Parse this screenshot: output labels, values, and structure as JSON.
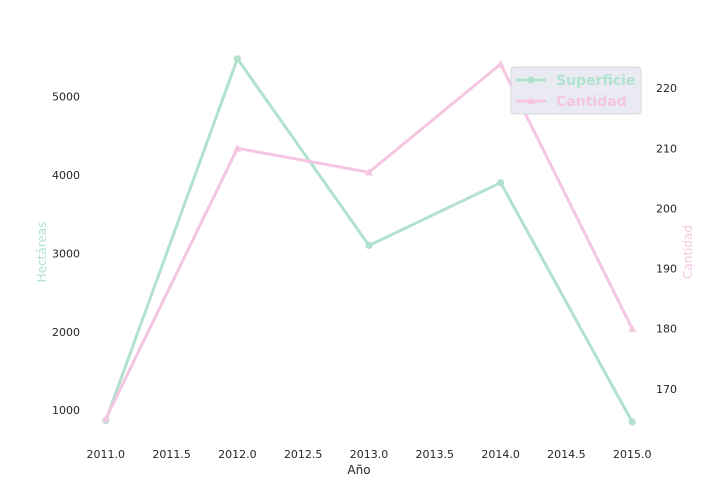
{
  "chart_data": {
    "type": "line",
    "title": "",
    "xlabel": "Año",
    "x": [
      2011,
      2012,
      2013,
      2014,
      2015
    ],
    "xlim": [
      2010.88,
      2015.12
    ],
    "x_ticks": [
      "2011.0",
      "2011.5",
      "2012.0",
      "2012.5",
      "2013.0",
      "2013.5",
      "2014.0",
      "2014.5",
      "2015.0"
    ],
    "y_left": {
      "label": "Hectáreas",
      "lim": [
        620,
        5720
      ],
      "ticks": [
        1000,
        2000,
        3000,
        4000,
        5000
      ]
    },
    "y_right": {
      "label": "Cantidad",
      "lim": [
        161.5,
        228.0
      ],
      "ticks": [
        170,
        180,
        190,
        200,
        210,
        220
      ]
    },
    "series": [
      {
        "name": "Superficie",
        "axis": "left",
        "marker": "circle",
        "color": "#b1e2ce",
        "values": [
          870,
          5480,
          3100,
          3900,
          850
        ]
      },
      {
        "name": "Cantidad",
        "axis": "right",
        "marker": "triangle",
        "color": "#f5c6e2",
        "values": [
          165,
          210,
          206,
          224,
          180
        ]
      }
    ],
    "legend_position": "top-right",
    "grid": false
  }
}
